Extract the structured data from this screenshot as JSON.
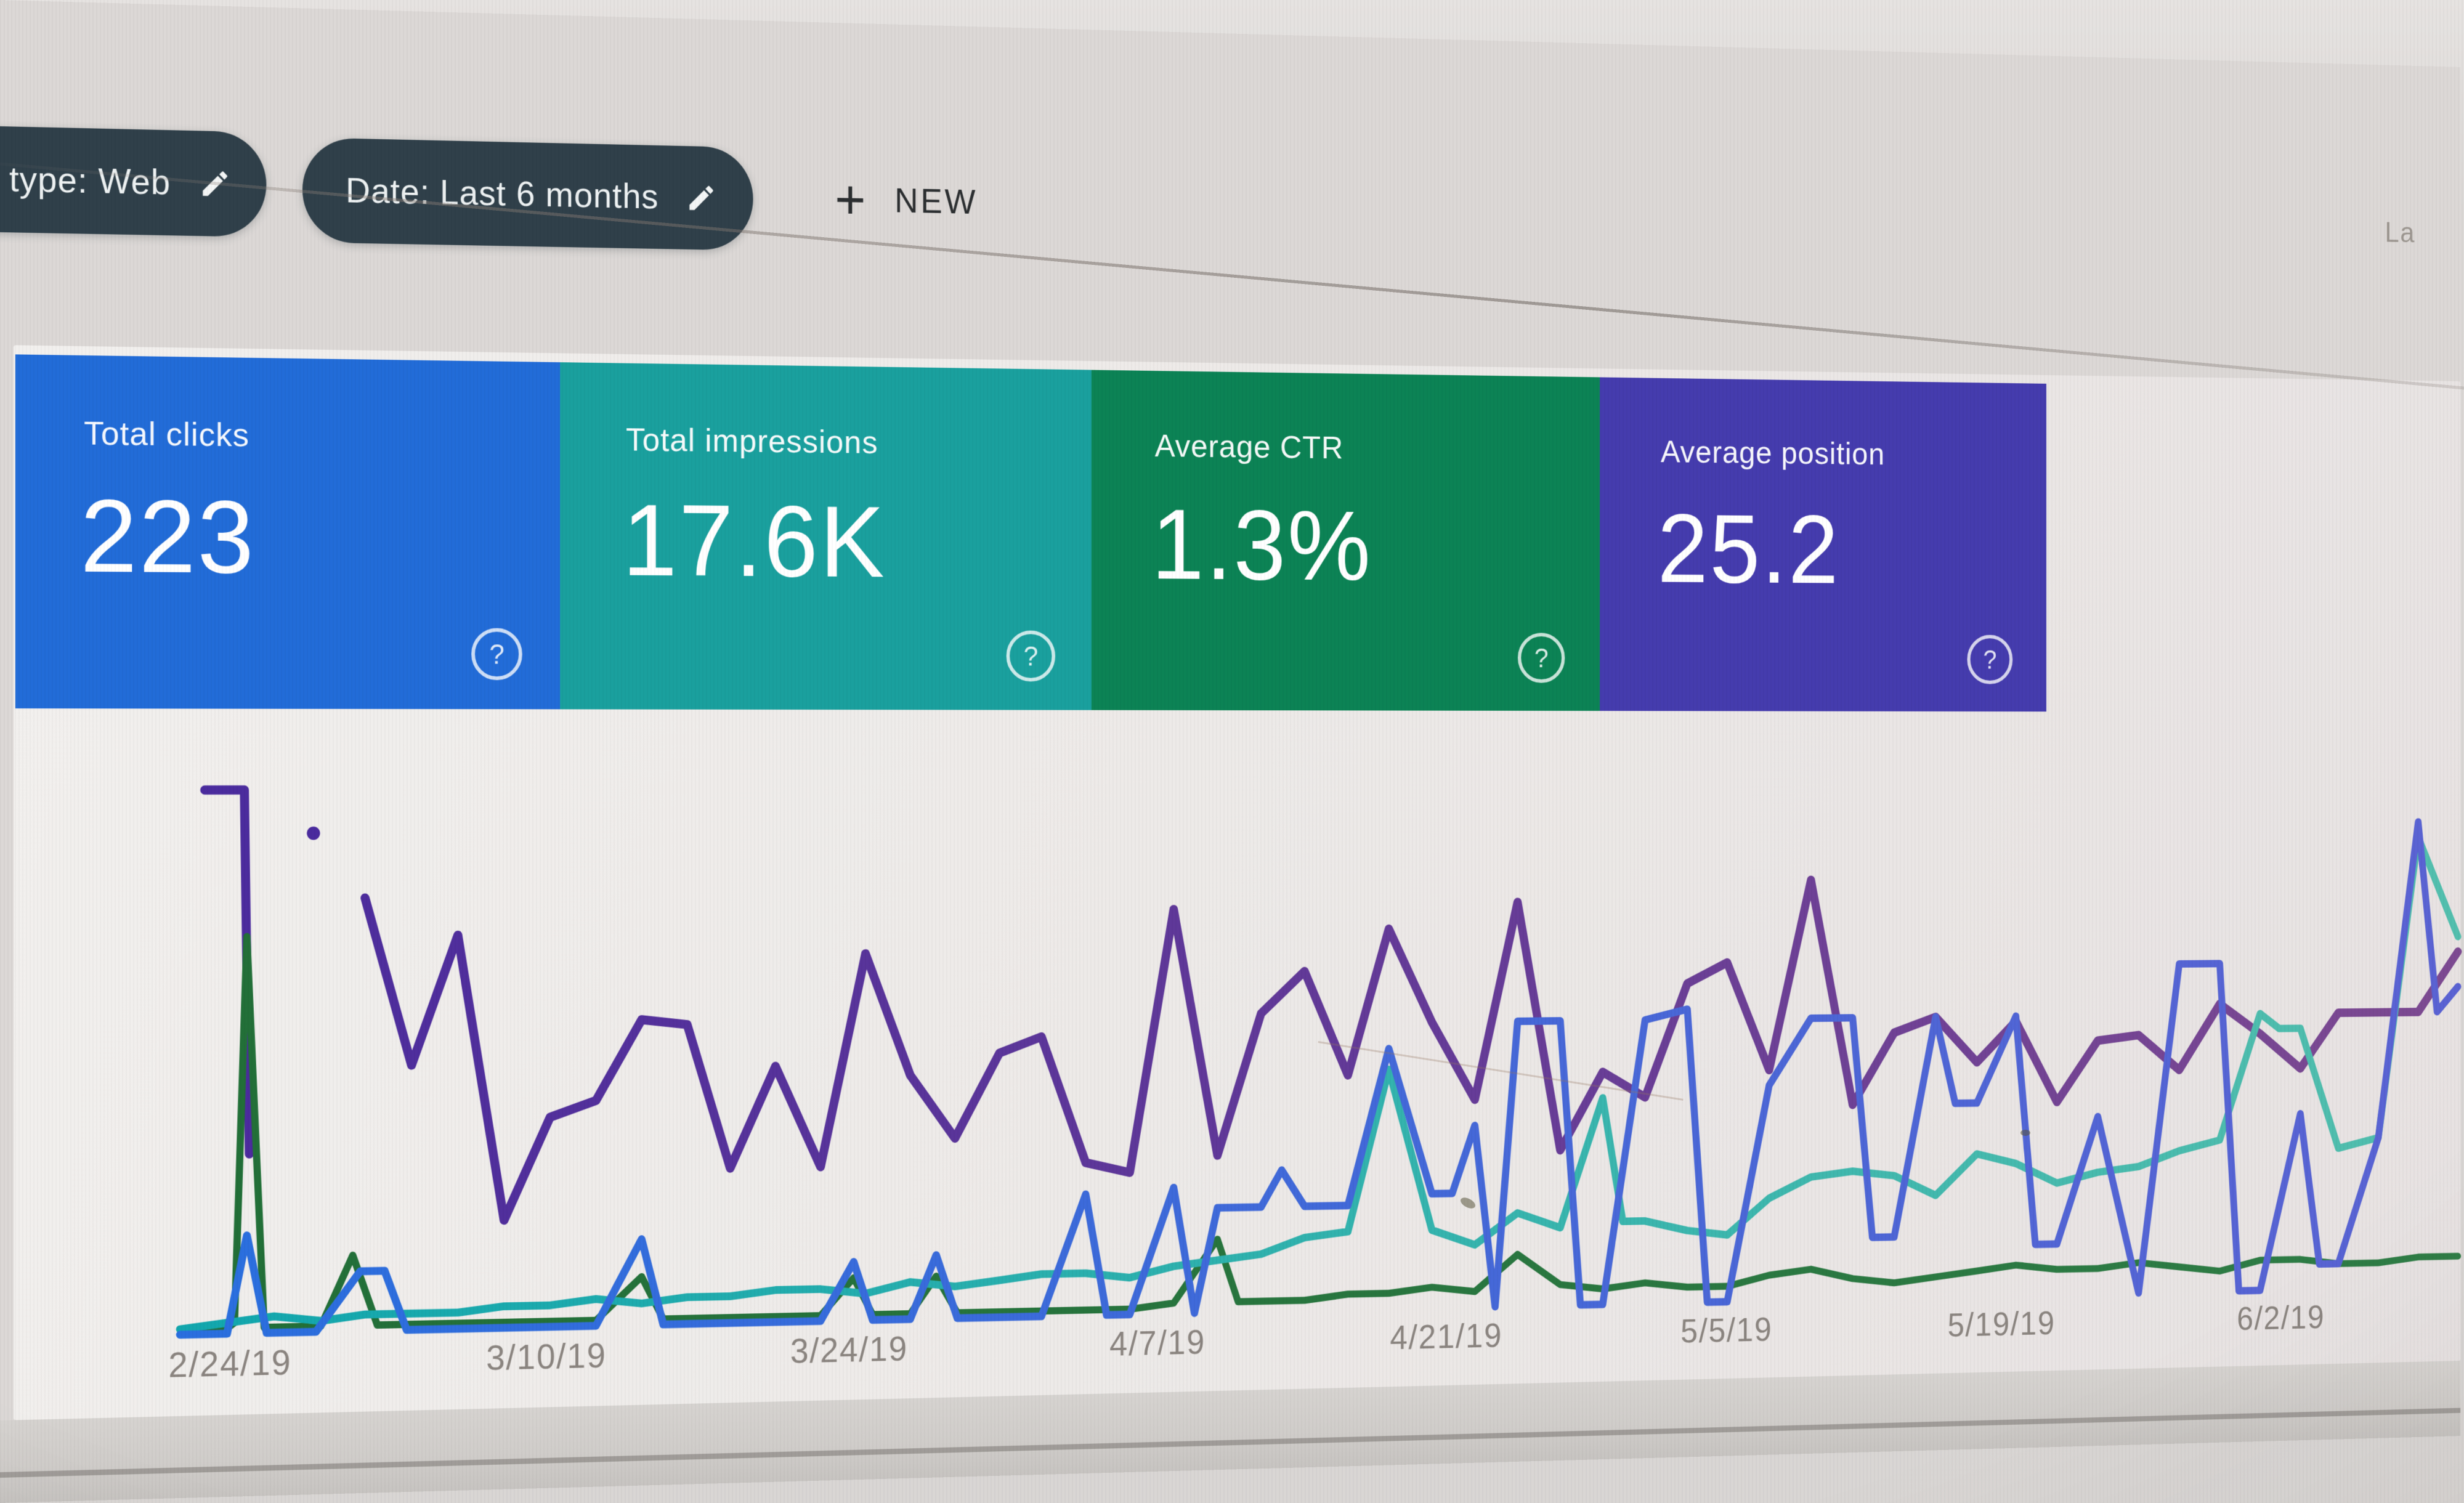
{
  "window": {
    "partial_text_top_right": "La"
  },
  "filters": {
    "chips": [
      {
        "label": "type: Web",
        "icon": "pencil-edit-icon"
      },
      {
        "label": "Date: Last 6 months",
        "icon": "pencil-edit-icon"
      }
    ],
    "new_button": {
      "plus": "+",
      "label": "NEW"
    }
  },
  "summary_cards": [
    {
      "label": "Total clicks",
      "value": "223",
      "color": "#226cd8",
      "help_icon": "?"
    },
    {
      "label": "Total impressions",
      "value": "17.6K",
      "color": "#1aa09e",
      "help_icon": "?"
    },
    {
      "label": "Average CTR",
      "value": "1.3%",
      "color": "#0c8355",
      "help_icon": "?"
    },
    {
      "label": "Average position",
      "value": "25.2",
      "color": "#453cae",
      "help_icon": "?"
    }
  ],
  "chart_data": {
    "type": "line",
    "x_labels": [
      "2/24/19",
      "3/10/19",
      "3/24/19",
      "4/7/19",
      "4/21/19",
      "5/5/19",
      "5/19/19",
      "6/2/19"
    ],
    "x_range_days": "2/24/19 - 6/8/19",
    "grid": "off",
    "legend": "none (series colors match summary cards)",
    "note": "points are [x_percent_across_plot, value_percent_of_plot_height]; each series is independently auto-scaled as in Search Console",
    "series": [
      {
        "name": "Total clicks",
        "color_start": "#2a6fdf",
        "color_end": "#5b63d3",
        "stroke_width": 13,
        "segments": [
          [
            [
              0,
              0
            ],
            [
              1.9,
              0
            ],
            [
              2.7,
              18
            ],
            [
              3.5,
              0
            ],
            [
              5.5,
              0
            ],
            [
              7.3,
              11
            ],
            [
              8.3,
              11
            ],
            [
              9.2,
              0
            ],
            [
              11.3,
              0
            ],
            [
              13.2,
              0
            ],
            [
              15.1,
              0
            ],
            [
              17,
              0
            ],
            [
              18.9,
              16
            ],
            [
              19.8,
              0
            ],
            [
              20.8,
              0
            ],
            [
              22.6,
              0
            ],
            [
              24.5,
              0
            ],
            [
              26.4,
              0
            ],
            [
              27.8,
              11
            ],
            [
              28.6,
              0
            ],
            [
              30.2,
              0
            ],
            [
              31.3,
              12
            ],
            [
              32.2,
              0
            ],
            [
              34,
              0
            ],
            [
              35.8,
              0
            ],
            [
              37.7,
              23
            ],
            [
              38.6,
              0
            ],
            [
              39.6,
              0
            ],
            [
              41.5,
              24
            ],
            [
              42.4,
              0
            ],
            [
              43.4,
              20
            ],
            [
              44.3,
              20
            ],
            [
              45.3,
              20
            ],
            [
              46.2,
              27
            ],
            [
              47.2,
              20
            ],
            [
              49.1,
              20
            ],
            [
              50.9,
              50
            ],
            [
              52.8,
              22
            ],
            [
              53.7,
              22
            ],
            [
              54.7,
              35
            ],
            [
              55.6,
              0
            ],
            [
              56.6,
              55
            ],
            [
              58.5,
              55
            ],
            [
              59.4,
              0
            ],
            [
              60.4,
              0
            ],
            [
              62.3,
              55
            ],
            [
              64.2,
              57
            ],
            [
              65.1,
              0
            ],
            [
              66,
              0
            ],
            [
              67.9,
              42
            ],
            [
              69.8,
              55
            ],
            [
              71.7,
              55
            ],
            [
              72.6,
              12
            ],
            [
              73.6,
              12
            ],
            [
              75.5,
              55
            ],
            [
              76.4,
              38
            ],
            [
              77.4,
              38
            ],
            [
              79.2,
              55
            ],
            [
              80.1,
              10
            ],
            [
              81.1,
              10
            ],
            [
              83,
              35
            ],
            [
              84.9,
              0
            ],
            [
              86.8,
              65
            ],
            [
              88.7,
              65
            ],
            [
              89.6,
              0
            ],
            [
              90.6,
              0
            ],
            [
              92.5,
              35
            ],
            [
              93.4,
              5
            ],
            [
              94.3,
              5
            ],
            [
              96.2,
              30
            ],
            [
              98.1,
              93
            ],
            [
              99,
              55
            ],
            [
              100,
              60
            ]
          ]
        ]
      },
      {
        "name": "Total impressions",
        "color_start": "#12a7ae",
        "color_end": "#53bfae",
        "stroke_width": 13,
        "segments": [
          [
            [
              0,
              1
            ],
            [
              1.9,
              2
            ],
            [
              3.8,
              3
            ],
            [
              5.7,
              2
            ],
            [
              7.5,
              3
            ],
            [
              9.4,
              3
            ],
            [
              11.3,
              3
            ],
            [
              13.2,
              4
            ],
            [
              15.1,
              4
            ],
            [
              17,
              5
            ],
            [
              18.9,
              4
            ],
            [
              20.8,
              5
            ],
            [
              22.6,
              5
            ],
            [
              24.5,
              6
            ],
            [
              26.4,
              6
            ],
            [
              28.3,
              5
            ],
            [
              30.2,
              7
            ],
            [
              32.1,
              6
            ],
            [
              34,
              7
            ],
            [
              35.8,
              8
            ],
            [
              37.7,
              8
            ],
            [
              39.6,
              7
            ],
            [
              41.5,
              9
            ],
            [
              43.4,
              10
            ],
            [
              45.3,
              11
            ],
            [
              47.2,
              14
            ],
            [
              49.1,
              15
            ],
            [
              50.9,
              46
            ],
            [
              52.8,
              15
            ],
            [
              54.7,
              12
            ],
            [
              56.6,
              18
            ],
            [
              58.5,
              15
            ],
            [
              60.4,
              40
            ],
            [
              61.3,
              16
            ],
            [
              62.3,
              16
            ],
            [
              64.2,
              14
            ],
            [
              66,
              13
            ],
            [
              67.9,
              20
            ],
            [
              69.8,
              24
            ],
            [
              71.7,
              25
            ],
            [
              73.6,
              24
            ],
            [
              75.5,
              20
            ],
            [
              77.4,
              28
            ],
            [
              79.2,
              26
            ],
            [
              81.1,
              22
            ],
            [
              83,
              24
            ],
            [
              84.9,
              25
            ],
            [
              86.8,
              28
            ],
            [
              88.7,
              30
            ],
            [
              90.6,
              55
            ],
            [
              91.5,
              52
            ],
            [
              92.5,
              52
            ],
            [
              94.3,
              28
            ],
            [
              96.2,
              30
            ],
            [
              98.1,
              90
            ],
            [
              100,
              70
            ]
          ]
        ]
      },
      {
        "name": "Average CTR",
        "color_start": "#226f38",
        "color_end": "#2f7d46",
        "stroke_width": 12,
        "segments": [
          [
            [
              0,
              1
            ],
            [
              1.9,
              1
            ],
            [
              2.2,
              2
            ],
            [
              2.7,
              73
            ],
            [
              3.4,
              1
            ],
            [
              5.7,
              1
            ],
            [
              7,
              14
            ],
            [
              8,
              1
            ],
            [
              9.4,
              1
            ],
            [
              11.3,
              1
            ],
            [
              13.2,
              1
            ],
            [
              15.1,
              1
            ],
            [
              17,
              1
            ],
            [
              18.9,
              9
            ],
            [
              19.8,
              1
            ],
            [
              22.6,
              1
            ],
            [
              24.5,
              1
            ],
            [
              26.4,
              1
            ],
            [
              27.8,
              8
            ],
            [
              28.6,
              1
            ],
            [
              30.2,
              1
            ],
            [
              31.3,
              8
            ],
            [
              32.2,
              1
            ],
            [
              34,
              1
            ],
            [
              35.8,
              1
            ],
            [
              37.7,
              1
            ],
            [
              39.6,
              1
            ],
            [
              41.5,
              2
            ],
            [
              43.4,
              14
            ],
            [
              44.3,
              2
            ],
            [
              45.3,
              2
            ],
            [
              47.2,
              2
            ],
            [
              49.1,
              3
            ],
            [
              50.9,
              3
            ],
            [
              52.8,
              4
            ],
            [
              54.7,
              3
            ],
            [
              56.6,
              10
            ],
            [
              58.5,
              4
            ],
            [
              60.4,
              3
            ],
            [
              62.3,
              4
            ],
            [
              64.2,
              3
            ],
            [
              66,
              3
            ],
            [
              67.9,
              5
            ],
            [
              69.8,
              6
            ],
            [
              71.7,
              4
            ],
            [
              73.6,
              3
            ],
            [
              75.5,
              4
            ],
            [
              77.4,
              5
            ],
            [
              79.2,
              6
            ],
            [
              81.1,
              5
            ],
            [
              83,
              5
            ],
            [
              84.9,
              6
            ],
            [
              86.8,
              5
            ],
            [
              88.7,
              4
            ],
            [
              90.6,
              6
            ],
            [
              92.5,
              6
            ],
            [
              94.3,
              5
            ],
            [
              96.2,
              5
            ],
            [
              98.1,
              6
            ],
            [
              100,
              6
            ]
          ]
        ]
      },
      {
        "name": "Average position",
        "color_start": "#4a2b9e",
        "color_end": "#7d4a92",
        "stroke_width": 15,
        "segments": [
          [
            [
              1,
              100
            ],
            [
              2.6,
              100
            ],
            [
              2.8,
              33
            ]
          ],
          [
            [
              5.4,
              92
            ]
          ],
          [
            [
              7.5,
              80
            ],
            [
              9.4,
              49
            ],
            [
              11.3,
              73
            ],
            [
              13.2,
              20
            ],
            [
              15.1,
              39
            ],
            [
              17,
              42
            ],
            [
              18.9,
              57
            ],
            [
              20.8,
              56
            ],
            [
              22.6,
              29
            ],
            [
              24.5,
              48
            ],
            [
              26.4,
              29
            ],
            [
              28.3,
              69
            ],
            [
              30.2,
              46
            ],
            [
              32.1,
              34
            ],
            [
              34,
              50
            ],
            [
              35.8,
              53
            ],
            [
              37.7,
              29
            ],
            [
              39.6,
              27
            ],
            [
              41.5,
              77
            ],
            [
              43.4,
              30
            ],
            [
              45.3,
              57
            ],
            [
              47.2,
              65
            ],
            [
              49.1,
              45
            ],
            [
              50.9,
              73
            ],
            [
              52.8,
              55
            ],
            [
              54.7,
              40
            ],
            [
              56.6,
              78
            ],
            [
              58.5,
              30
            ],
            [
              60.4,
              45
            ],
            [
              62.3,
              40
            ],
            [
              64.2,
              62
            ],
            [
              66,
              66
            ],
            [
              67.9,
              45
            ],
            [
              69.8,
              82
            ],
            [
              71.7,
              38
            ],
            [
              73.6,
              52
            ],
            [
              75.5,
              55
            ],
            [
              77.4,
              46
            ],
            [
              79.2,
              54
            ],
            [
              81.1,
              38
            ],
            [
              83,
              50
            ],
            [
              84.9,
              51
            ],
            [
              86.8,
              44
            ],
            [
              88.7,
              57
            ],
            [
              90.6,
              51
            ],
            [
              92.5,
              44
            ],
            [
              94.3,
              55
            ],
            [
              96.2,
              55
            ],
            [
              98.1,
              55
            ],
            [
              100,
              67
            ]
          ]
        ]
      }
    ]
  }
}
